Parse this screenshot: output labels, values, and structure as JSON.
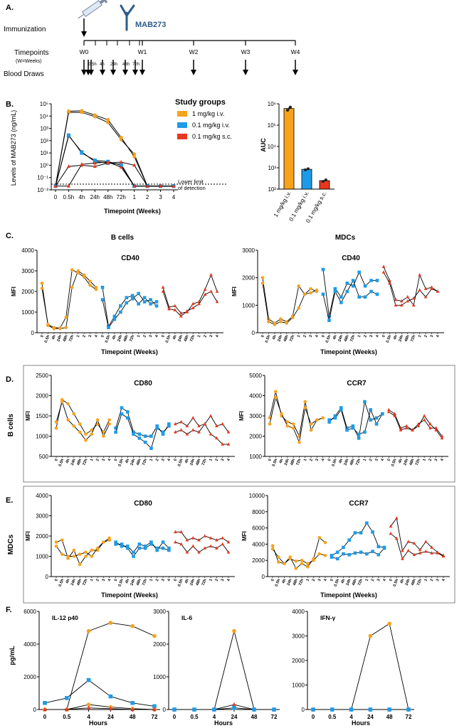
{
  "colors": {
    "orange": "#F7A21B",
    "blue": "#1E9BE8",
    "red": "#E8371E",
    "line": "#000000",
    "antibody": "#2E5C8A"
  },
  "panelA": {
    "letter": "A.",
    "immunization": "Immunization",
    "mab_label": "MAB273",
    "timepoints": "Timepoints",
    "weeks_note": "(W=Weeks)",
    "blood_draws": "Blood Draws",
    "weeks": [
      "W0",
      "W1",
      "W2",
      "W3",
      "W4"
    ],
    "hours": [
      "0.5h",
      "4h",
      "24h",
      "48h",
      "72h"
    ]
  },
  "panelB": {
    "letter": "B.",
    "ylabel": "Levels of MAB273 (ng/mL)",
    "xlabel": "Timepoint (Weeks)",
    "yticks": [
      "10⁵",
      "10⁴",
      "10³",
      "10²",
      "10¹",
      "10⁰",
      "10⁻¹",
      "10⁻²"
    ],
    "xticks": [
      "0",
      "0.5h",
      "4h",
      "24h",
      "48h",
      "72h",
      "1",
      "2",
      "3",
      "4"
    ],
    "lod_line1": "Lower limit",
    "lod_line2": "of detection",
    "legend_title": "Study groups",
    "groups": [
      "1 mg/kg i.v.",
      "0.1 mg/kg i.v.",
      "0.1 mg/kg s.c."
    ],
    "auc_ylabel": "AUC",
    "auc_yticks": [
      "10⁶",
      "10⁵",
      "10⁴",
      "10³",
      "10²"
    ],
    "auc_xticks": [
      "1 mg/kg i.v.",
      "0.1 mg/kg i.v.",
      "0.1 mg/kg s.c."
    ]
  },
  "panelC": {
    "letter": "C.",
    "title_left": "B cells",
    "title_right": "MDCs",
    "xlabel": "Timepoint (Weeks)"
  },
  "panelD": {
    "letter": "D.",
    "row_label": "B cells"
  },
  "panelE": {
    "letter": "E.",
    "row_label": "MDCs",
    "xlabel": "Timepoint (Weeks)"
  },
  "panelF": {
    "letter": "F.",
    "ylabel": "pg/mL",
    "xlabel": "Hours"
  },
  "mfi_label": "MFI",
  "mfi_xticks": [
    "0",
    "0.5h",
    "4h",
    "24h",
    "48h",
    "72h",
    "1",
    "2",
    "3",
    "4"
  ],
  "chart_data": [
    {
      "type": "line",
      "id": "pk",
      "title": "Levels of MAB273",
      "yscale": "log",
      "ylim": [
        0.01,
        100000
      ],
      "categories": [
        "0",
        "0.5h",
        "4h",
        "24h",
        "48h",
        "72h",
        "1",
        "2",
        "3",
        "4"
      ],
      "series": [
        {
          "name": "1 mg/kg i.v.",
          "color": "orange",
          "animals": [
            [
              0.02,
              20000,
              20000,
              9000,
              3000,
              120,
              8,
              0.02,
              0.02,
              0.02
            ],
            [
              0.02,
              25000,
              27000,
              12000,
              5000,
              180,
              5,
              0.02,
              0.02,
              0.02
            ]
          ]
        },
        {
          "name": "0.1 mg/kg i.v.",
          "color": "blue",
          "animals": [
            [
              0.02,
              250,
              12,
              2,
              1.5,
              1.2,
              0.02,
              0.02,
              0.02,
              0.02
            ],
            [
              0.02,
              280,
              10,
              2.5,
              2,
              1,
              0.02,
              0.02,
              0.02,
              0.02
            ]
          ]
        },
        {
          "name": "0.1 mg/kg s.c.",
          "color": "red",
          "animals": [
            [
              0.02,
              0.8,
              1,
              0.8,
              1.5,
              1.8,
              1,
              0.02,
              0.02,
              0.02
            ],
            [
              0.02,
              0.02,
              1.2,
              1.5,
              1.8,
              0.7,
              0.02,
              0.02,
              0.02,
              0.02
            ]
          ]
        }
      ]
    },
    {
      "type": "bar",
      "id": "auc",
      "title": "AUC",
      "yscale": "log",
      "ylim": [
        100,
        1000000
      ],
      "categories": [
        "1 mg/kg i.v.",
        "0.1 mg/kg i.v.",
        "0.1 mg/kg s.c."
      ],
      "values": [
        600000,
        850,
        250
      ],
      "points": [
        [
          500000,
          700000
        ],
        [
          800,
          900
        ],
        [
          230,
          270
        ]
      ]
    },
    {
      "type": "line",
      "id": "bcells_cd40",
      "title": "CD40",
      "ylim": [
        0,
        4000
      ],
      "yticks": [
        0,
        1000,
        2000,
        3000,
        4000
      ],
      "series": [
        {
          "color": "orange",
          "animals": [
            [
              2400,
              350,
              200,
              200,
              250,
              2200,
              3000,
              2800,
              2500,
              2200
            ],
            [
              2150,
              400,
              250,
              230,
              750,
              3050,
              2900,
              2700,
              2300,
              2100
            ]
          ]
        },
        {
          "color": "blue",
          "animals": [
            [
              2200,
              300,
              800,
              1300,
              1700,
              1800,
              1400,
              1700,
              1400,
              1500
            ],
            [
              1600,
              250,
              650,
              1000,
              1450,
              1650,
              1900,
              1500,
              1600,
              1300
            ]
          ]
        },
        {
          "color": "red",
          "animals": [
            [
              2200,
              1250,
              1300,
              950,
              1000,
              1400,
              1500,
              2100,
              2800,
              2000
            ],
            [
              2000,
              1150,
              1100,
              800,
              1050,
              1200,
              1400,
              1850,
              2000,
              1500
            ]
          ]
        }
      ]
    },
    {
      "type": "line",
      "id": "mdcs_cd40",
      "title": "CD40",
      "ylim": [
        0,
        3000
      ],
      "yticks": [
        0,
        1000,
        2000,
        3000
      ],
      "series": [
        {
          "color": "orange",
          "animals": [
            [
              2000,
              500,
              350,
              500,
              400,
              600,
              1700,
              1400,
              1600,
              1500
            ],
            [
              1800,
              400,
              300,
              400,
              350,
              550,
              900,
              1400,
              1450,
              1550
            ]
          ]
        },
        {
          "color": "blue",
          "animals": [
            [
              2300,
              600,
              1600,
              1300,
              1800,
              1700,
              2200,
              1700,
              1900,
              1900
            ],
            [
              1400,
              450,
              1500,
              1100,
              1500,
              1900,
              1300,
              1300,
              1500,
              1400
            ]
          ]
        },
        {
          "color": "red",
          "animals": [
            [
              2400,
              1900,
              1200,
              1150,
              1300,
              1000,
              2100,
              1600,
              1650,
              1500
            ],
            [
              2200,
              1800,
              1000,
              1000,
              1150,
              1250,
              1550,
              1300,
              1600,
              1500
            ]
          ]
        }
      ]
    },
    {
      "type": "line",
      "id": "bcells_cd80",
      "title": "CD80",
      "ylim": [
        500,
        2500
      ],
      "yticks": [
        500,
        1000,
        1500,
        2000,
        2500
      ],
      "series": [
        {
          "color": "orange",
          "animals": [
            [
              1200,
              1900,
              1800,
              1550,
              1300,
              1050,
              1150,
              1300,
              1100,
              1400
            ],
            [
              1350,
              1850,
              1400,
              1250,
              1100,
              900,
              1050,
              1400,
              1000,
              1300
            ]
          ]
        },
        {
          "color": "blue",
          "animals": [
            [
              1200,
              1700,
              1600,
              1100,
              1050,
              1000,
              1000,
              1250,
              1050,
              1300
            ],
            [
              1100,
              1550,
              1450,
              1050,
              950,
              850,
              700,
              1200,
              1100,
              1250
            ]
          ]
        },
        {
          "color": "red",
          "animals": [
            [
              1300,
              1350,
              1250,
              1450,
              1250,
              1300,
              1500,
              1250,
              1300,
              1100
            ],
            [
              1100,
              1150,
              1050,
              1150,
              1100,
              1300,
              1050,
              950,
              800,
              800
            ]
          ]
        }
      ]
    },
    {
      "type": "line",
      "id": "bcells_ccr7",
      "title": "CCR7",
      "ylim": [
        1000,
        5000
      ],
      "yticks": [
        1000,
        2000,
        3000,
        4000,
        5000
      ],
      "series": [
        {
          "color": "orange",
          "animals": [
            [
              2900,
              4200,
              3000,
              2700,
              2600,
              2000,
              3700,
              2300,
              2800,
              2900
            ],
            [
              2600,
              3900,
              3100,
              2500,
              2400,
              1700,
              3400,
              2600,
              2800,
              2900
            ]
          ]
        },
        {
          "color": "blue",
          "animals": [
            [
              2700,
              3000,
              3400,
              2400,
              2500,
              1900,
              3700,
              2800,
              2900,
              3100
            ],
            [
              2800,
              2900,
              3300,
              2300,
              2400,
              2100,
              2200,
              3300,
              2600,
              3100
            ]
          ]
        },
        {
          "color": "red",
          "animals": [
            [
              3300,
              3100,
              2400,
              2500,
              2300,
              2500,
              3000,
              2600,
              2300,
              1900
            ],
            [
              3200,
              3000,
              2300,
              2400,
              2300,
              2600,
              2800,
              2400,
              2400,
              2000
            ]
          ]
        }
      ]
    },
    {
      "type": "line",
      "id": "mdcs_cd80",
      "title": "CD80",
      "ylim": [
        0,
        4000
      ],
      "yticks": [
        0,
        1000,
        2000,
        3000,
        4000
      ],
      "series": [
        {
          "color": "orange",
          "animals": [
            [
              1700,
              1800,
              900,
              1300,
              600,
              1000,
              1300,
              1300,
              1700,
              1900
            ],
            [
              1500,
              1100,
              1000,
              1000,
              1100,
              1200,
              1000,
              1400,
              1700,
              1800
            ]
          ]
        },
        {
          "color": "blue",
          "animals": [
            [
              1700,
              1500,
              1500,
              1200,
              1600,
              1500,
              1700,
              1300,
              1700,
              1400
            ],
            [
              1600,
              1600,
              1400,
              1000,
              1400,
              1400,
              1600,
              1400,
              1400,
              1300
            ]
          ]
        },
        {
          "color": "red",
          "animals": [
            [
              2200,
              2200,
              1800,
              1900,
              1800,
              2000,
              1900,
              1800,
              1900,
              1700
            ],
            [
              1700,
              1600,
              1200,
              1500,
              1200,
              1400,
              1500,
              1400,
              1600,
              1200
            ]
          ]
        }
      ]
    },
    {
      "type": "line",
      "id": "mdcs_ccr7",
      "title": "CCR7",
      "ylim": [
        0,
        10000
      ],
      "yticks": [
        0,
        2000,
        4000,
        6000,
        8000,
        10000
      ],
      "series": [
        {
          "color": "orange",
          "animals": [
            [
              3800,
              1800,
              1600,
              2400,
              1000,
              1600,
              1200,
              2200,
              4800,
              4200
            ],
            [
              3400,
              2400,
              1600,
              2200,
              1900,
              2000,
              1600,
              2000,
              2800,
              2600
            ]
          ]
        },
        {
          "color": "blue",
          "animals": [
            [
              2600,
              3000,
              3600,
              4500,
              5400,
              5400,
              6600,
              5500,
              3700,
              3600
            ],
            [
              2400,
              2200,
              2800,
              2700,
              2900,
              3000,
              2800,
              3100,
              2700,
              3500
            ]
          ]
        },
        {
          "color": "red",
          "animals": [
            [
              6200,
              7200,
              3200,
              4300,
              4100,
              3300,
              4300,
              3600,
              3000,
              2600
            ],
            [
              5300,
              4700,
              2200,
              3200,
              2700,
              2900,
              3100,
              2900,
              2900,
              2500
            ]
          ]
        }
      ]
    },
    {
      "type": "line",
      "id": "il12",
      "title": "IL-12 p40",
      "ylim": [
        0,
        6000
      ],
      "yticks": [
        0,
        2000,
        4000,
        6000
      ],
      "categories": [
        "0",
        "0.5",
        "4",
        "24",
        "48",
        "72"
      ],
      "series": [
        {
          "color": "orange",
          "values": [
            0,
            0,
            4800,
            5300,
            5100,
            4500
          ]
        },
        {
          "color": "blue",
          "values": [
            400,
            700,
            1800,
            800,
            400,
            200
          ]
        },
        {
          "color": "orange",
          "values": [
            0,
            0,
            300,
            150,
            50,
            0
          ]
        },
        {
          "color": "red",
          "values": [
            0,
            0,
            100,
            50,
            0,
            0
          ]
        }
      ]
    },
    {
      "type": "line",
      "id": "il6",
      "title": "IL-6",
      "ylim": [
        0,
        3000
      ],
      "yticks": [
        0,
        1000,
        2000,
        3000
      ],
      "categories": [
        "0",
        "0.5",
        "4",
        "24",
        "48",
        "72"
      ],
      "series": [
        {
          "color": "orange",
          "values": [
            0,
            0,
            0,
            2400,
            0,
            0
          ]
        },
        {
          "color": "red",
          "values": [
            0,
            0,
            0,
            150,
            0,
            0
          ]
        },
        {
          "color": "blue",
          "values": [
            0,
            0,
            0,
            50,
            0,
            0
          ]
        }
      ]
    },
    {
      "type": "line",
      "id": "ifng",
      "title": "IFN-γ",
      "ylim": [
        0,
        4000
      ],
      "yticks": [
        0,
        1000,
        2000,
        3000,
        4000
      ],
      "categories": [
        "0",
        "0.5",
        "4",
        "24",
        "48",
        "72"
      ],
      "series": [
        {
          "color": "orange",
          "values": [
            0,
            0,
            0,
            3000,
            3500,
            0
          ]
        },
        {
          "color": "blue",
          "values": [
            0,
            0,
            0,
            0,
            0,
            0
          ]
        }
      ]
    }
  ]
}
